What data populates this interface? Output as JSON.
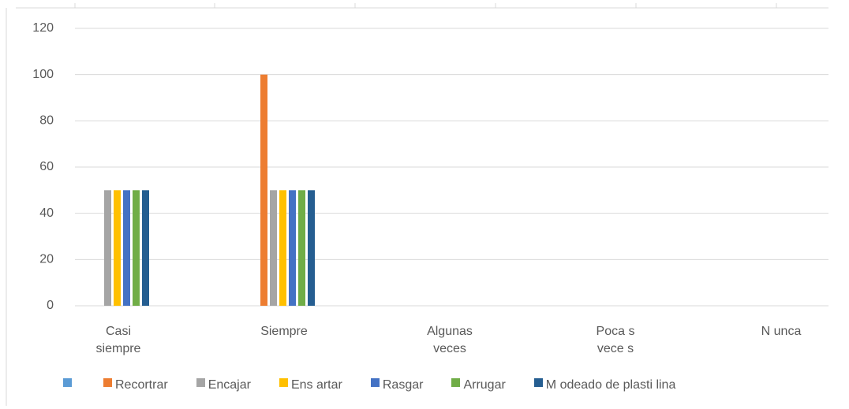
{
  "chart_data": {
    "type": "bar",
    "categories": [
      "Casi siempre",
      "Siempre",
      "Algunas veces",
      "Poca s vece s",
      "N unca"
    ],
    "series": [
      {
        "name": null,
        "color": "#5b9bd5",
        "values": [
          0,
          0,
          0,
          0,
          0
        ]
      },
      {
        "name": "Recortrar",
        "color": "#ed7d31",
        "values": [
          0,
          100,
          0,
          0,
          0
        ]
      },
      {
        "name": "Encajar",
        "color": "#a5a5a5",
        "values": [
          50,
          50,
          0,
          0,
          0
        ]
      },
      {
        "name": "Ens artar",
        "color": "#ffc000",
        "values": [
          50,
          50,
          0,
          0,
          0
        ]
      },
      {
        "name": "Rasgar",
        "color": "#4472c4",
        "values": [
          50,
          50,
          0,
          0,
          0
        ]
      },
      {
        "name": "Arrugar",
        "color": "#70ad47",
        "values": [
          50,
          50,
          0,
          0,
          0
        ]
      },
      {
        "name": "M odeado de plasti lina",
        "color": "#255e91",
        "values": [
          50,
          50,
          0,
          0,
          0
        ]
      }
    ],
    "ylim": [
      0,
      120
    ],
    "yticks": [
      0,
      20,
      40,
      60,
      80,
      100,
      120
    ],
    "grid": true,
    "legend": "bottom"
  }
}
